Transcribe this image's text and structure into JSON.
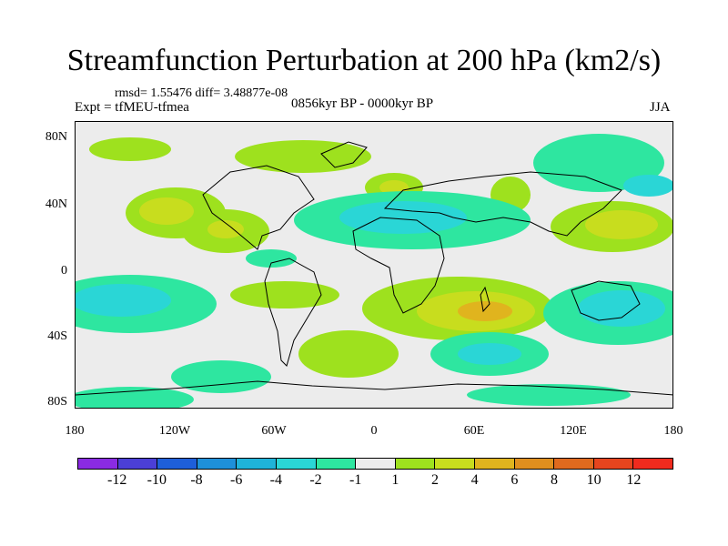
{
  "title": "Streamfunction Perturbation at 200 hPa (km2/s)",
  "stats": "rmsd= 1.55476 diff= 3.48877e-08",
  "expt": "Expt = tfMEU-tfmea",
  "period": "0856kyr BP - 0000kyr BP",
  "season": "JJA",
  "y_labels": [
    "80N",
    "40N",
    "0",
    "40S",
    "80S"
  ],
  "x_labels": [
    "180",
    "120W",
    "60W",
    "0",
    "60E",
    "120E",
    "180"
  ],
  "legend": {
    "labels": [
      "-12",
      "-10",
      "-8",
      "-6",
      "-4",
      "-2",
      "-1",
      "1",
      "2",
      "4",
      "6",
      "8",
      "10",
      "12"
    ],
    "colors": [
      "#8a2be2",
      "#4b3fd6",
      "#1e5fd9",
      "#1e90d9",
      "#1fb3d9",
      "#2ad6d6",
      "#2ee6a0",
      "#ececec",
      "#9ee11e",
      "#c8dd1e",
      "#e0b41e",
      "#e08f1e",
      "#e06a1e",
      "#e6451e",
      "#f02b1e"
    ]
  }
}
